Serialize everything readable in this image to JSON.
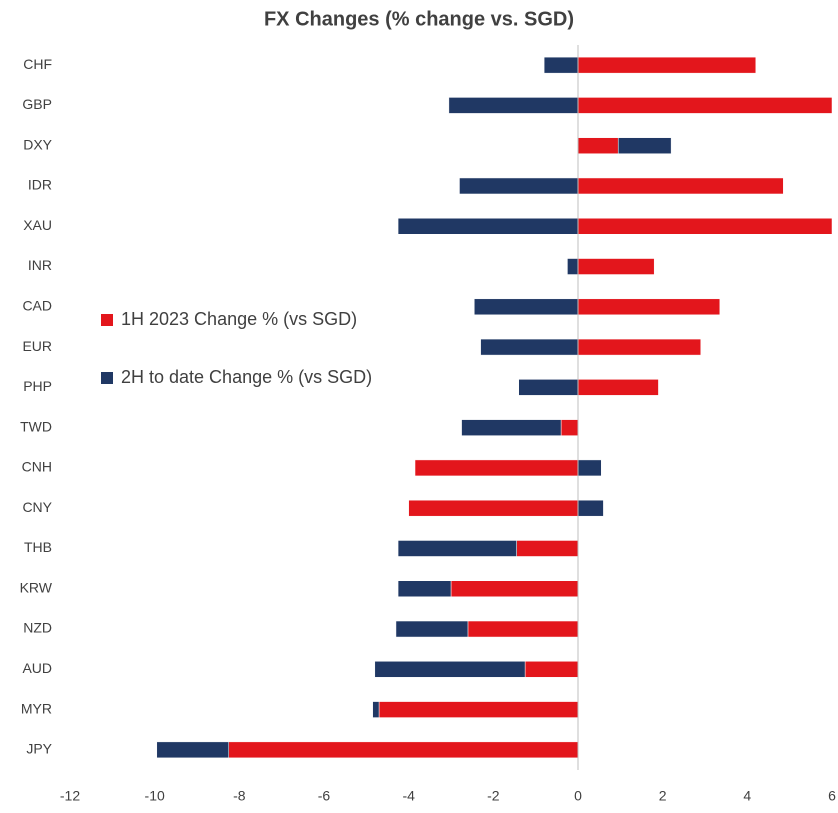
{
  "chart_data": {
    "type": "stacked_bar_horizontal",
    "title": "FX Changes (% change vs. SGD)",
    "categories": [
      "CHF",
      "GBP",
      "DXY",
      "IDR",
      "XAU",
      "INR",
      "CAD",
      "EUR",
      "PHP",
      "TWD",
      "CNH",
      "CNY",
      "THB",
      "KRW",
      "NZD",
      "AUD",
      "MYR",
      "JPY"
    ],
    "series": [
      {
        "name": "1H 2023 Change % (vs SGD)",
        "color": "#e3161c",
        "values": [
          4.2,
          6.0,
          0.95,
          4.85,
          6.0,
          1.8,
          3.35,
          2.9,
          1.9,
          -0.4,
          -3.85,
          -4.0,
          -1.45,
          -3.0,
          -2.6,
          -1.25,
          -4.7,
          -8.25
        ]
      },
      {
        "name": "2H to date Change % (vs SGD)",
        "color": "#203864",
        "values": [
          -0.8,
          -3.05,
          1.25,
          -2.8,
          -4.25,
          -0.25,
          -2.45,
          -2.3,
          -1.4,
          -2.35,
          0.55,
          0.6,
          -2.8,
          -1.25,
          -1.7,
          -3.55,
          -0.15,
          -1.7
        ]
      }
    ],
    "xlim": [
      -12,
      6
    ],
    "xticks": [
      -12,
      -10,
      -8,
      -6,
      -4,
      -2,
      0,
      2,
      4,
      6
    ],
    "legend": "middle-left"
  }
}
